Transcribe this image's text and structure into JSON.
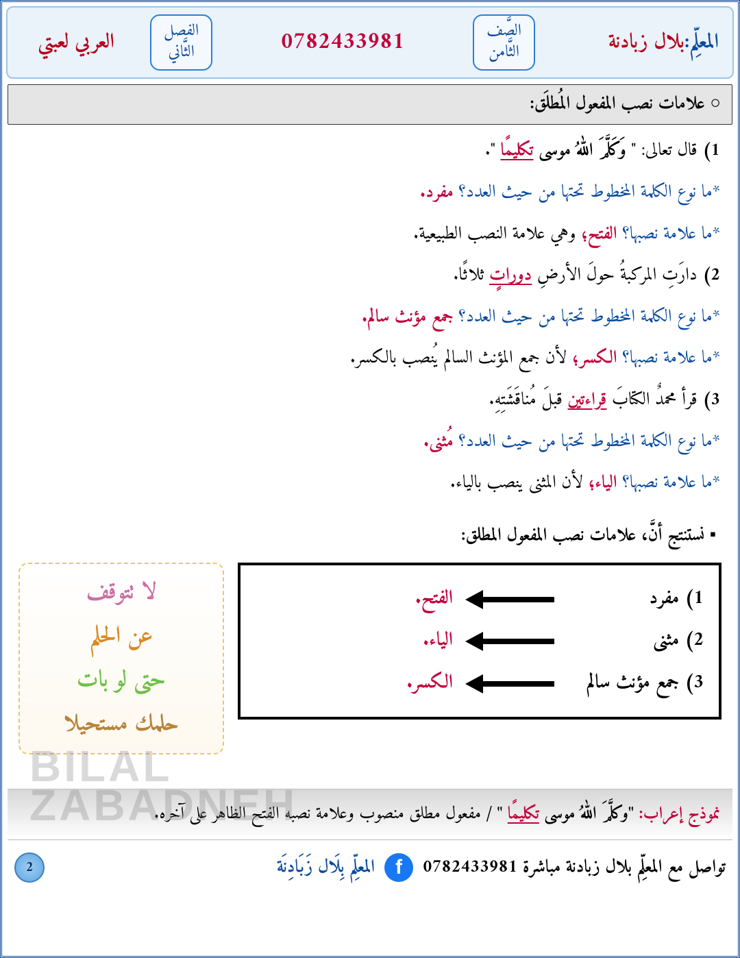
{
  "header": {
    "teacher_label": "المعلِّم: ",
    "teacher_name": "بلال زبادنة",
    "grade_label1": "الصَّف",
    "grade_label2": "الثَّامن",
    "phone": "0782433981",
    "term_label1": "الفصل",
    "term_label2": "الثَّاني",
    "motto": "العربي لعبتي"
  },
  "section_title": "علامات نصب المفعول المُطلَق:",
  "body": {
    "q1_num": "1) ",
    "q1_a": "قال تعالى: \"",
    "q1_b": "وَكَلَّمَ اللهُ موسى ",
    "q1_c": "تكليمًا",
    "q1_d": "\".",
    "q1_sub1_a": "*ما نوع الكلمة المخطوط تحتها من حيث العدد؟ ",
    "q1_sub1_b": "مفرد.",
    "q1_sub2_a": "*ما علامة نصبها؟ ",
    "q1_sub2_b": "الفتح؛ ",
    "q1_sub2_c": "وهي علامة النصب الطبيعية.",
    "q2_num": "2) ",
    "q2_a": "دارَتِ المركبةُ حولَ الأرضِ ",
    "q2_b": "دوراتٍ",
    "q2_c": " ثلاثًا.",
    "q2_sub1_a": "*ما نوع الكلمة المخطوط تحتها من حيث العدد؟ ",
    "q2_sub1_b": "جمع مؤنث سالم.",
    "q2_sub2_a": "*ما علامة نصبها؟ ",
    "q2_sub2_b": "الكسر؛ ",
    "q2_sub2_c": "لأن جمع المؤنث السالم يُنصب بالكسر.",
    "q3_num": "3) ",
    "q3_a": "قرأ محمدٌ الكتابَ ",
    "q3_b": "قراءتين",
    "q3_c": " قبلَ مُناقَشَتِهِ.",
    "q3_sub1_a": "*ما نوع الكلمة المخطوط تحتها من حيث العدد؟ ",
    "q3_sub1_b": "مُثنى.",
    "q3_sub2_a": "*ما علامة نصبها؟ ",
    "q3_sub2_b": "الياء؛ ",
    "q3_sub2_c": "لأن المثنى ينصب بالياء."
  },
  "conclude": "نستنتج أنَّ، علامات نصب المفعول المطلق:",
  "rules": {
    "r1_label": "1)  مفرد",
    "r1_ans": "الفتح.",
    "r2_label": "2)  مثنى",
    "r2_ans": "الياء.",
    "r3_label": "3)  جمع مؤنث سالم",
    "r3_ans": "الكسر."
  },
  "sticker": {
    "l1": "لا تتوقف",
    "l2": "عن الحلم",
    "l3": "حتى لو بات",
    "l4": "حلمك مستحيلا"
  },
  "watermark": {
    "l1": "BILAL",
    "l2": "ZABADNEH"
  },
  "example": {
    "lead": "نموذج إعراب: ",
    "quote_a": "\"وكلَّمَ اللهُ موسى ",
    "quote_b": "تكليمًا",
    "quote_c": "\" / ",
    "rest": "مفعول مطلق منصوب وعلامة نصبه الفتح الظاهر على آخره."
  },
  "footer": {
    "contact": "تواصل مع المعلِّم بلال زبادنة مباشرة 0782433981",
    "signature": "المعلِّم بِلَال زَبَادِنَة",
    "page": "2"
  }
}
